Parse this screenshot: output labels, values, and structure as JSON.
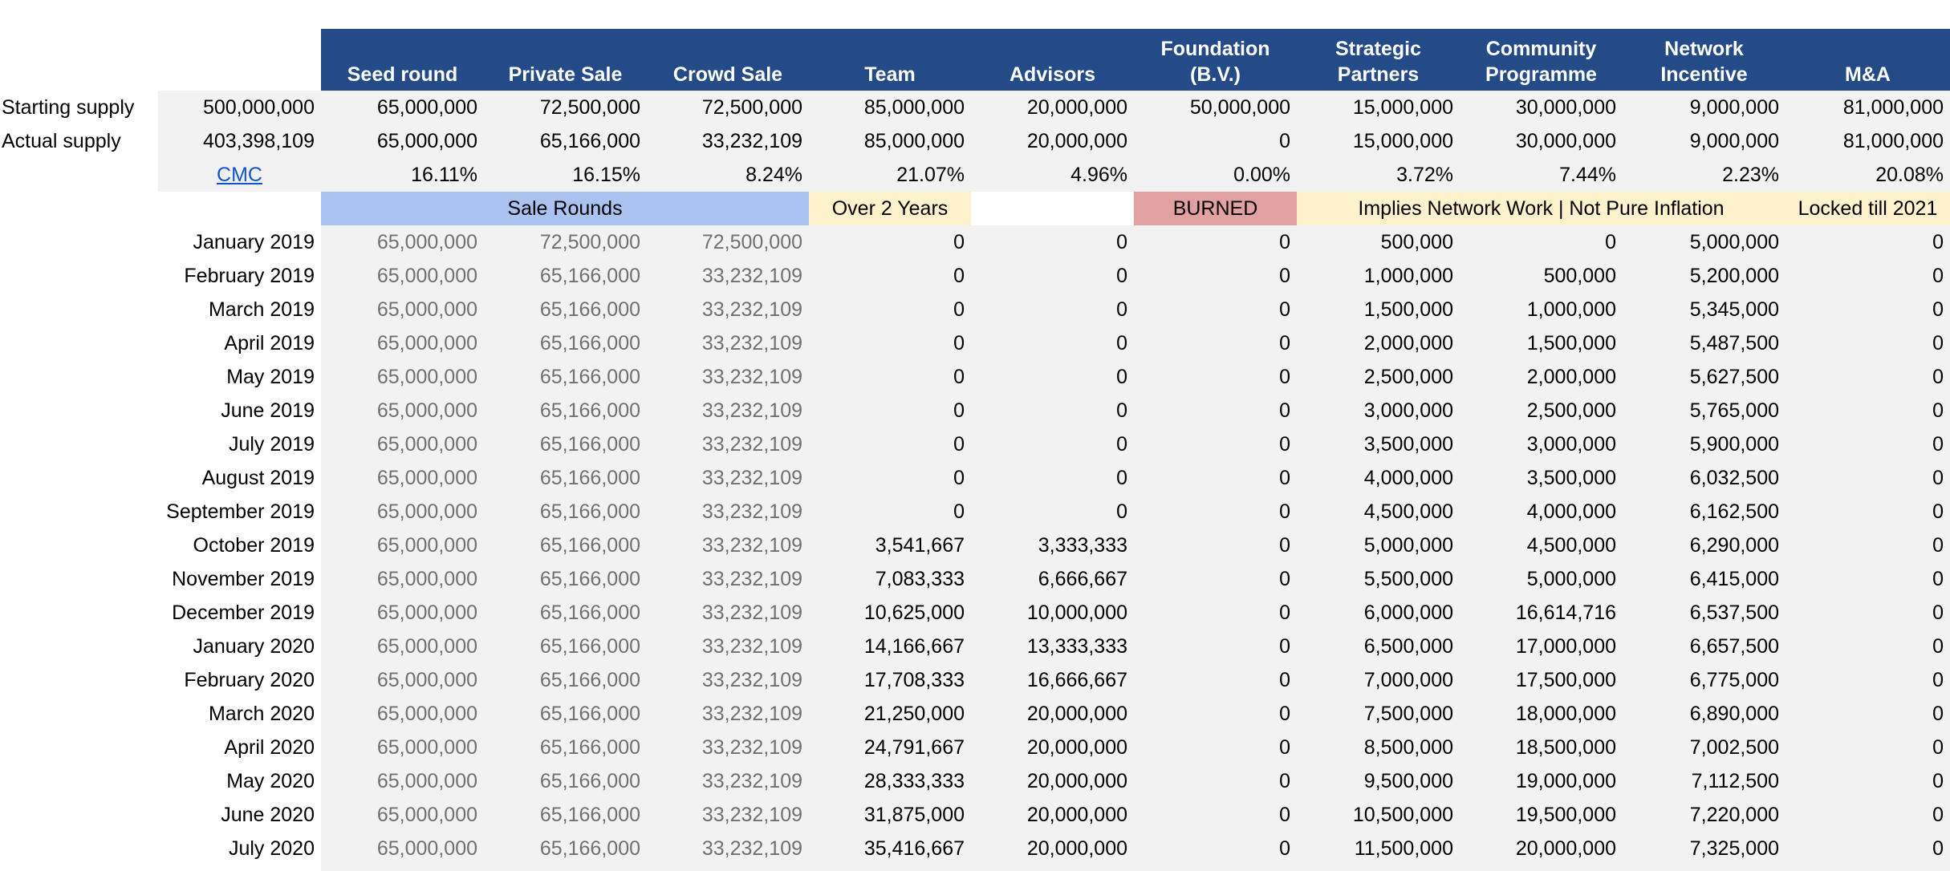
{
  "header": {
    "columns": [
      "Seed round",
      "Private Sale",
      "Crowd Sale",
      "Team",
      "Advisors",
      "Foundation (B.V.)",
      "Strategic Partners",
      "Community Programme",
      "Network Incentive",
      "M&A"
    ]
  },
  "summary": {
    "starting_label": "Starting supply",
    "starting": [
      "500,000,000",
      "65,000,000",
      "72,500,000",
      "72,500,000",
      "85,000,000",
      "20,000,000",
      "50,000,000",
      "15,000,000",
      "30,000,000",
      "9,000,000",
      "81,000,000"
    ],
    "actual_label": "Actual supply",
    "actual": [
      "403,398,109",
      "65,000,000",
      "65,166,000",
      "33,232,109",
      "85,000,000",
      "20,000,000",
      "0",
      "15,000,000",
      "30,000,000",
      "9,000,000",
      "81,000,000"
    ],
    "cmc_link": "CMC",
    "percent": [
      "16.11%",
      "16.15%",
      "8.24%",
      "21.07%",
      "4.96%",
      "0.00%",
      "3.72%",
      "7.44%",
      "2.23%",
      "20.08%"
    ]
  },
  "tags": {
    "sale_rounds": "Sale Rounds",
    "over_2_years": "Over 2 Years",
    "burned": "BURNED",
    "network_work": "Implies Network Work | Not Pure Inflation",
    "locked": "Locked till 2021"
  },
  "colors": {
    "header_bg": "#244a87",
    "sale_rounds": "#a9c2f0",
    "yellow": "#fdf2cc",
    "burned": "#e2a1a1",
    "link": "#1155cc"
  },
  "rows": [
    {
      "date": "January 2019",
      "v": [
        "65,000,000",
        "72,500,000",
        "72,500,000",
        "0",
        "0",
        "0",
        "500,000",
        "0",
        "5,000,000",
        "0"
      ]
    },
    {
      "date": "February 2019",
      "v": [
        "65,000,000",
        "65,166,000",
        "33,232,109",
        "0",
        "0",
        "0",
        "1,000,000",
        "500,000",
        "5,200,000",
        "0"
      ]
    },
    {
      "date": "March 2019",
      "v": [
        "65,000,000",
        "65,166,000",
        "33,232,109",
        "0",
        "0",
        "0",
        "1,500,000",
        "1,000,000",
        "5,345,000",
        "0"
      ]
    },
    {
      "date": "April 2019",
      "v": [
        "65,000,000",
        "65,166,000",
        "33,232,109",
        "0",
        "0",
        "0",
        "2,000,000",
        "1,500,000",
        "5,487,500",
        "0"
      ]
    },
    {
      "date": "May 2019",
      "v": [
        "65,000,000",
        "65,166,000",
        "33,232,109",
        "0",
        "0",
        "0",
        "2,500,000",
        "2,000,000",
        "5,627,500",
        "0"
      ]
    },
    {
      "date": "June 2019",
      "v": [
        "65,000,000",
        "65,166,000",
        "33,232,109",
        "0",
        "0",
        "0",
        "3,000,000",
        "2,500,000",
        "5,765,000",
        "0"
      ]
    },
    {
      "date": "July 2019",
      "v": [
        "65,000,000",
        "65,166,000",
        "33,232,109",
        "0",
        "0",
        "0",
        "3,500,000",
        "3,000,000",
        "5,900,000",
        "0"
      ]
    },
    {
      "date": "August 2019",
      "v": [
        "65,000,000",
        "65,166,000",
        "33,232,109",
        "0",
        "0",
        "0",
        "4,000,000",
        "3,500,000",
        "6,032,500",
        "0"
      ]
    },
    {
      "date": "September 2019",
      "v": [
        "65,000,000",
        "65,166,000",
        "33,232,109",
        "0",
        "0",
        "0",
        "4,500,000",
        "4,000,000",
        "6,162,500",
        "0"
      ]
    },
    {
      "date": "October 2019",
      "v": [
        "65,000,000",
        "65,166,000",
        "33,232,109",
        "3,541,667",
        "3,333,333",
        "0",
        "5,000,000",
        "4,500,000",
        "6,290,000",
        "0"
      ]
    },
    {
      "date": "November 2019",
      "v": [
        "65,000,000",
        "65,166,000",
        "33,232,109",
        "7,083,333",
        "6,666,667",
        "0",
        "5,500,000",
        "5,000,000",
        "6,415,000",
        "0"
      ]
    },
    {
      "date": "December 2019",
      "v": [
        "65,000,000",
        "65,166,000",
        "33,232,109",
        "10,625,000",
        "10,000,000",
        "0",
        "6,000,000",
        "16,614,716",
        "6,537,500",
        "0"
      ]
    },
    {
      "date": "January 2020",
      "v": [
        "65,000,000",
        "65,166,000",
        "33,232,109",
        "14,166,667",
        "13,333,333",
        "0",
        "6,500,000",
        "17,000,000",
        "6,657,500",
        "0"
      ]
    },
    {
      "date": "February 2020",
      "v": [
        "65,000,000",
        "65,166,000",
        "33,232,109",
        "17,708,333",
        "16,666,667",
        "0",
        "7,000,000",
        "17,500,000",
        "6,775,000",
        "0"
      ]
    },
    {
      "date": "March 2020",
      "v": [
        "65,000,000",
        "65,166,000",
        "33,232,109",
        "21,250,000",
        "20,000,000",
        "0",
        "7,500,000",
        "18,000,000",
        "6,890,000",
        "0"
      ]
    },
    {
      "date": "April 2020",
      "v": [
        "65,000,000",
        "65,166,000",
        "33,232,109",
        "24,791,667",
        "20,000,000",
        "0",
        "8,500,000",
        "18,500,000",
        "7,002,500",
        "0"
      ]
    },
    {
      "date": "May 2020",
      "v": [
        "65,000,000",
        "65,166,000",
        "33,232,109",
        "28,333,333",
        "20,000,000",
        "0",
        "9,500,000",
        "19,000,000",
        "7,112,500",
        "0"
      ]
    },
    {
      "date": "June 2020",
      "v": [
        "65,000,000",
        "65,166,000",
        "33,232,109",
        "31,875,000",
        "20,000,000",
        "0",
        "10,500,000",
        "19,500,000",
        "7,220,000",
        "0"
      ]
    },
    {
      "date": "July 2020",
      "v": [
        "65,000,000",
        "65,166,000",
        "33,232,109",
        "35,416,667",
        "20,000,000",
        "0",
        "11,500,000",
        "20,000,000",
        "7,325,000",
        "0"
      ]
    }
  ]
}
